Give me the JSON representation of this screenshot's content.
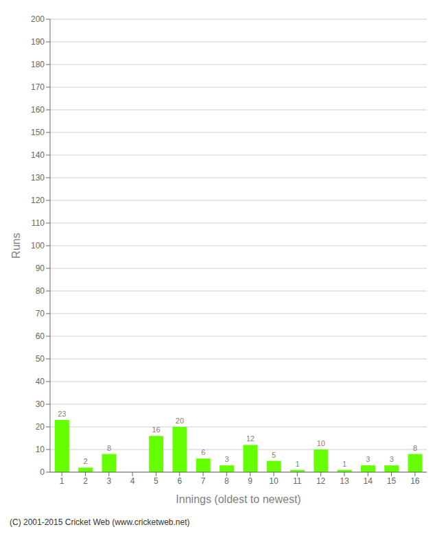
{
  "chart_data": {
    "type": "bar",
    "xlabel": "Innings (oldest to newest)",
    "ylabel": "Runs",
    "categories": [
      1,
      2,
      3,
      4,
      5,
      6,
      7,
      8,
      9,
      10,
      11,
      12,
      13,
      14,
      15,
      16
    ],
    "values": [
      23,
      2,
      8,
      0,
      16,
      20,
      6,
      3,
      12,
      5,
      1,
      10,
      1,
      3,
      3,
      8
    ],
    "color": "#66ff00",
    "ylim": [
      0,
      200
    ],
    "yticks": [
      0,
      10,
      20,
      30,
      40,
      50,
      60,
      70,
      80,
      90,
      100,
      110,
      120,
      130,
      140,
      150,
      160,
      170,
      180,
      190,
      200
    ],
    "grid": true,
    "data_labels": true,
    "annotations": [
      "(C) 2001-2015 Cricket Web (www.cricketweb.net)"
    ]
  }
}
